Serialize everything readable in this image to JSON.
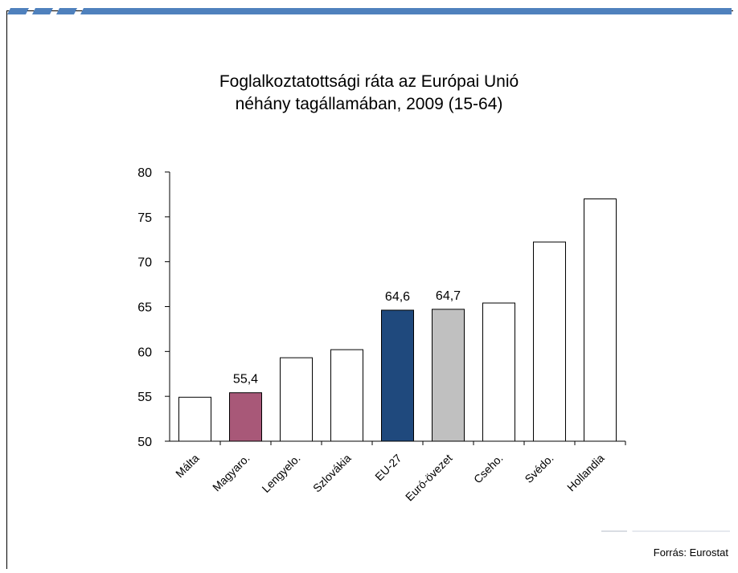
{
  "chart_data": {
    "type": "bar",
    "title_line1": "Foglalkoztatottsági ráta az Európai Unió",
    "title_line2": "néhány tagállamában, 2009 (15-64)",
    "categories": [
      "Málta",
      "Magyaro.",
      "Lengyelo.",
      "Szlovákia",
      "EU-27",
      "Euró-övezet",
      "Cseho.",
      "Svédo.",
      "Hollandia"
    ],
    "values": [
      54.9,
      55.4,
      59.3,
      60.2,
      64.6,
      64.7,
      65.4,
      72.2,
      77.0
    ],
    "data_labels": [
      "",
      "55,4",
      "",
      "",
      "64,6",
      "64,7",
      "",
      "",
      ""
    ],
    "bar_fills": [
      "#ffffff",
      "#a85878",
      "#ffffff",
      "#ffffff",
      "#1f497d",
      "#c0c0c0",
      "#ffffff",
      "#ffffff",
      "#ffffff"
    ],
    "ylim": [
      50,
      80
    ],
    "yticks": [
      "50",
      "55",
      "60",
      "65",
      "70",
      "75",
      "80"
    ],
    "grid": false,
    "legend": "none"
  },
  "footer": {
    "source": "Forrás:  Eurostat"
  },
  "colors": {
    "accent_bar": "#4f81bd",
    "highlight": "#a85878",
    "eu27": "#1f497d",
    "eurozone": "#c0c0c0"
  }
}
